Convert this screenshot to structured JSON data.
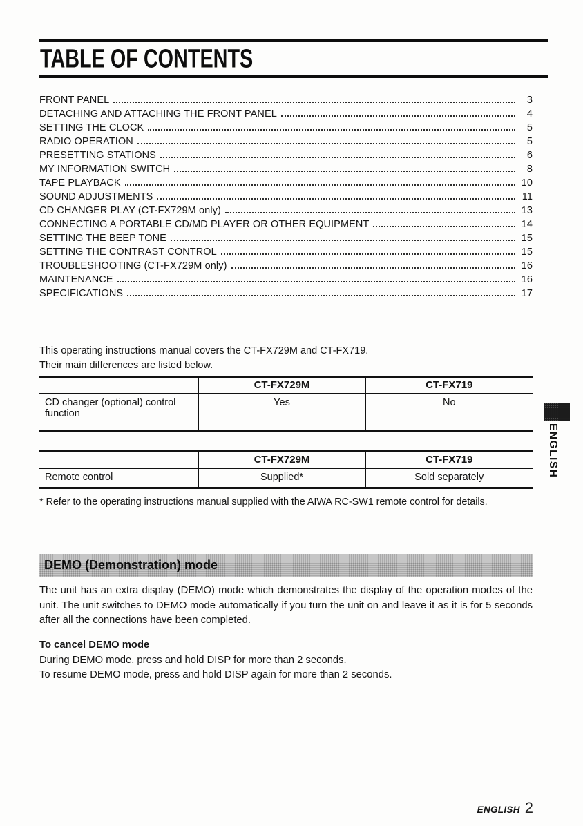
{
  "page": {
    "title": "TABLE OF CONTENTS",
    "side_tab_label": "ENGLISH",
    "footer": {
      "language": "ENGLISH",
      "page_number": "2"
    }
  },
  "toc": {
    "entries": [
      {
        "label": "FRONT PANEL",
        "page": "3"
      },
      {
        "label": "DETACHING AND ATTACHING THE FRONT PANEL",
        "page": "4"
      },
      {
        "label": "SETTING THE CLOCK",
        "page": "5"
      },
      {
        "label": "RADIO OPERATION",
        "page": "5"
      },
      {
        "label": "PRESETTING STATIONS",
        "page": "6"
      },
      {
        "label": "MY INFORMATION SWITCH",
        "page": "8"
      },
      {
        "label": "TAPE PLAYBACK",
        "page": "10"
      },
      {
        "label": "SOUND ADJUSTMENTS",
        "page": "11"
      },
      {
        "label": "CD CHANGER PLAY (CT-FX729M only)",
        "page": "13"
      },
      {
        "label": "CONNECTING A PORTABLE CD/MD PLAYER OR OTHER EQUIPMENT",
        "page": "14"
      },
      {
        "label": "SETTING THE BEEP TONE",
        "page": "15"
      },
      {
        "label": "SETTING THE CONTRAST CONTROL",
        "page": "15"
      },
      {
        "label": "TROUBLESHOOTING (CT-FX729M only)",
        "page": "16"
      },
      {
        "label": "MAINTENANCE",
        "page": "16"
      },
      {
        "label": "SPECIFICATIONS",
        "page": "17"
      }
    ]
  },
  "intro": {
    "text": "This operating instructions manual covers the CT-FX729M and CT-FX719.\nTheir main differences are listed below."
  },
  "tables": [
    {
      "headers": [
        "",
        "CT-FX729M",
        "CT-FX719"
      ],
      "rows": [
        {
          "feature": "CD changer (optional) control function",
          "fx729m": "Yes",
          "fx719": "No"
        }
      ]
    },
    {
      "headers": [
        "",
        "CT-FX729M",
        "CT-FX719"
      ],
      "rows": [
        {
          "feature": "Remote control",
          "fx729m": "Supplied*",
          "fx719": "Sold separately"
        }
      ]
    }
  ],
  "footnote": "* Refer to the operating instructions manual supplied with the AIWA RC-SW1 remote control for details.",
  "demo": {
    "heading": "DEMO (Demonstration) mode",
    "body": "The unit has an extra display (DEMO) mode which demonstrates the display of the operation modes of the unit. The unit switches to DEMO mode automatically if you turn the unit on and leave it as it is for 5 seconds after all the connections have been completed.",
    "cancel_heading": "To cancel DEMO mode",
    "cancel_line1": "During DEMO mode, press and hold DISP for more than 2 seconds.",
    "cancel_line2": "To resume DEMO mode, press and hold DISP again for more than 2 seconds."
  }
}
